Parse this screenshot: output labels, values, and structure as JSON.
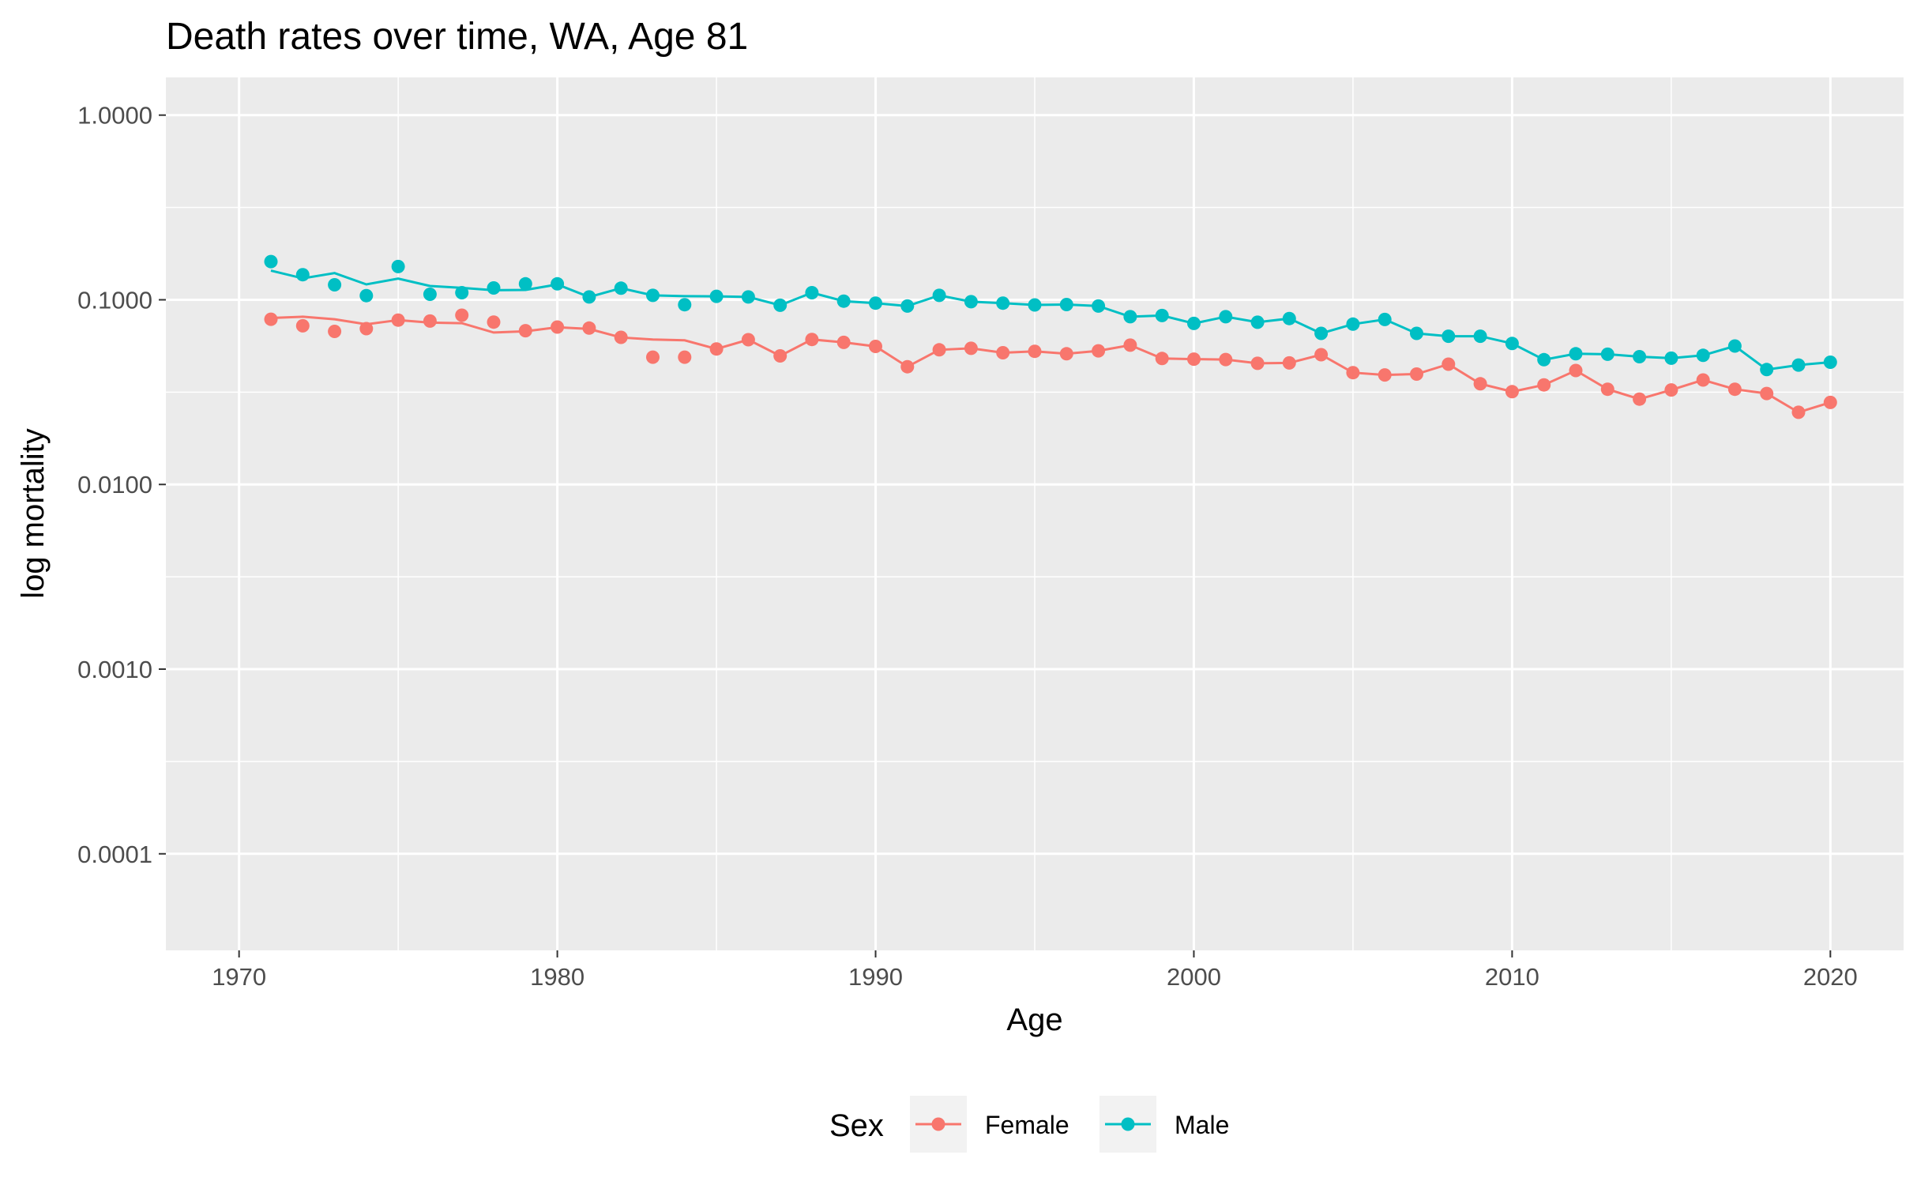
{
  "chart_data": {
    "type": "line",
    "title": "Death rates over time, WA, Age 81",
    "xlabel": "Age",
    "ylabel": "log mortality",
    "x_scale": "linear",
    "y_scale": "log10",
    "xlim": [
      1967.7,
      2022.3
    ],
    "ylim": [
      3e-05,
      1.6
    ],
    "x_ticks": [
      1970,
      1980,
      1990,
      2000,
      2010,
      2020
    ],
    "x_tick_labels": [
      "1970",
      "1980",
      "1990",
      "2000",
      "2010",
      "2020"
    ],
    "y_ticks": [
      0.0001,
      0.001,
      0.01,
      0.1,
      1
    ],
    "y_tick_labels": [
      "0.0001",
      "0.0010",
      "0.0100",
      "0.1000",
      "1.0000"
    ],
    "grid": true,
    "legend": {
      "title": "Sex",
      "position": "bottom"
    },
    "x": [
      1971,
      1972,
      1973,
      1974,
      1975,
      1976,
      1977,
      1978,
      1979,
      1980,
      1981,
      1982,
      1983,
      1984,
      1985,
      1986,
      1987,
      1988,
      1989,
      1990,
      1991,
      1992,
      1993,
      1994,
      1995,
      1996,
      1997,
      1998,
      1999,
      2000,
      2001,
      2002,
      2003,
      2004,
      2005,
      2006,
      2007,
      2008,
      2009,
      2010,
      2011,
      2012,
      2013,
      2014,
      2015,
      2016,
      2017,
      2018,
      2019,
      2020
    ],
    "series": [
      {
        "name": "Female",
        "color": "#F8766D",
        "points": [
          0.0785,
          0.0723,
          0.0674,
          0.0698,
          0.0776,
          0.0767,
          0.0825,
          0.0757,
          0.068,
          0.0712,
          0.0703,
          0.0626,
          0.0489,
          0.0489,
          0.0542,
          0.0608,
          0.0497,
          0.061,
          0.0588,
          0.0559,
          0.0434,
          0.0536,
          0.0546,
          0.0517,
          0.0526,
          0.051,
          0.0529,
          0.0568,
          0.0481,
          0.0477,
          0.0475,
          0.0453,
          0.0455,
          0.0504,
          0.0403,
          0.0392,
          0.0396,
          0.0448,
          0.0351,
          0.0318,
          0.0346,
          0.0414,
          0.0328,
          0.029,
          0.0325,
          0.0368,
          0.0328,
          0.0311,
          0.0246,
          0.0278
        ],
        "line": [
          0.0797,
          0.081,
          0.0785,
          0.0737,
          0.0776,
          0.0752,
          0.0747,
          0.0665,
          0.0675,
          0.071,
          0.0695,
          0.0625,
          0.0609,
          0.0603,
          0.0542,
          0.0608,
          0.0497,
          0.061,
          0.0588,
          0.0559,
          0.0434,
          0.0536,
          0.0546,
          0.0517,
          0.0526,
          0.051,
          0.0529,
          0.0568,
          0.0481,
          0.0477,
          0.0475,
          0.0453,
          0.0455,
          0.0504,
          0.0403,
          0.0392,
          0.0396,
          0.0448,
          0.0351,
          0.0318,
          0.0346,
          0.0414,
          0.0328,
          0.029,
          0.0325,
          0.0368,
          0.0328,
          0.0311,
          0.0246,
          0.0278
        ]
      },
      {
        "name": "Male",
        "color": "#00BFC4",
        "points": [
          0.161,
          0.1367,
          0.1206,
          0.1053,
          0.1513,
          0.1071,
          0.1093,
          0.1159,
          0.122,
          0.122,
          0.1036,
          0.1155,
          0.1057,
          0.0941,
          0.1044,
          0.1036,
          0.0934,
          0.1093,
          0.0983,
          0.0959,
          0.0925,
          0.1057,
          0.0976,
          0.0959,
          0.0938,
          0.0942,
          0.0925,
          0.081,
          0.0822,
          0.0745,
          0.081,
          0.0756,
          0.0792,
          0.0658,
          0.0738,
          0.0782,
          0.0658,
          0.0635,
          0.0635,
          0.058,
          0.0474,
          0.051,
          0.0507,
          0.0492,
          0.0483,
          0.05,
          0.0562,
          0.0419,
          0.0443,
          0.0459
        ],
        "line": [
          0.1438,
          0.1307,
          0.1395,
          0.1211,
          0.1302,
          0.1188,
          0.116,
          0.1126,
          0.1131,
          0.121,
          0.1036,
          0.1155,
          0.1057,
          0.1046,
          0.1044,
          0.1036,
          0.0934,
          0.1093,
          0.0983,
          0.0959,
          0.0925,
          0.1057,
          0.0976,
          0.0959,
          0.0938,
          0.0942,
          0.0925,
          0.081,
          0.0822,
          0.0745,
          0.081,
          0.0756,
          0.0792,
          0.0658,
          0.0738,
          0.0782,
          0.0658,
          0.0635,
          0.0635,
          0.058,
          0.0474,
          0.051,
          0.0507,
          0.0492,
          0.0483,
          0.05,
          0.0562,
          0.0419,
          0.0443,
          0.0459
        ]
      }
    ]
  }
}
